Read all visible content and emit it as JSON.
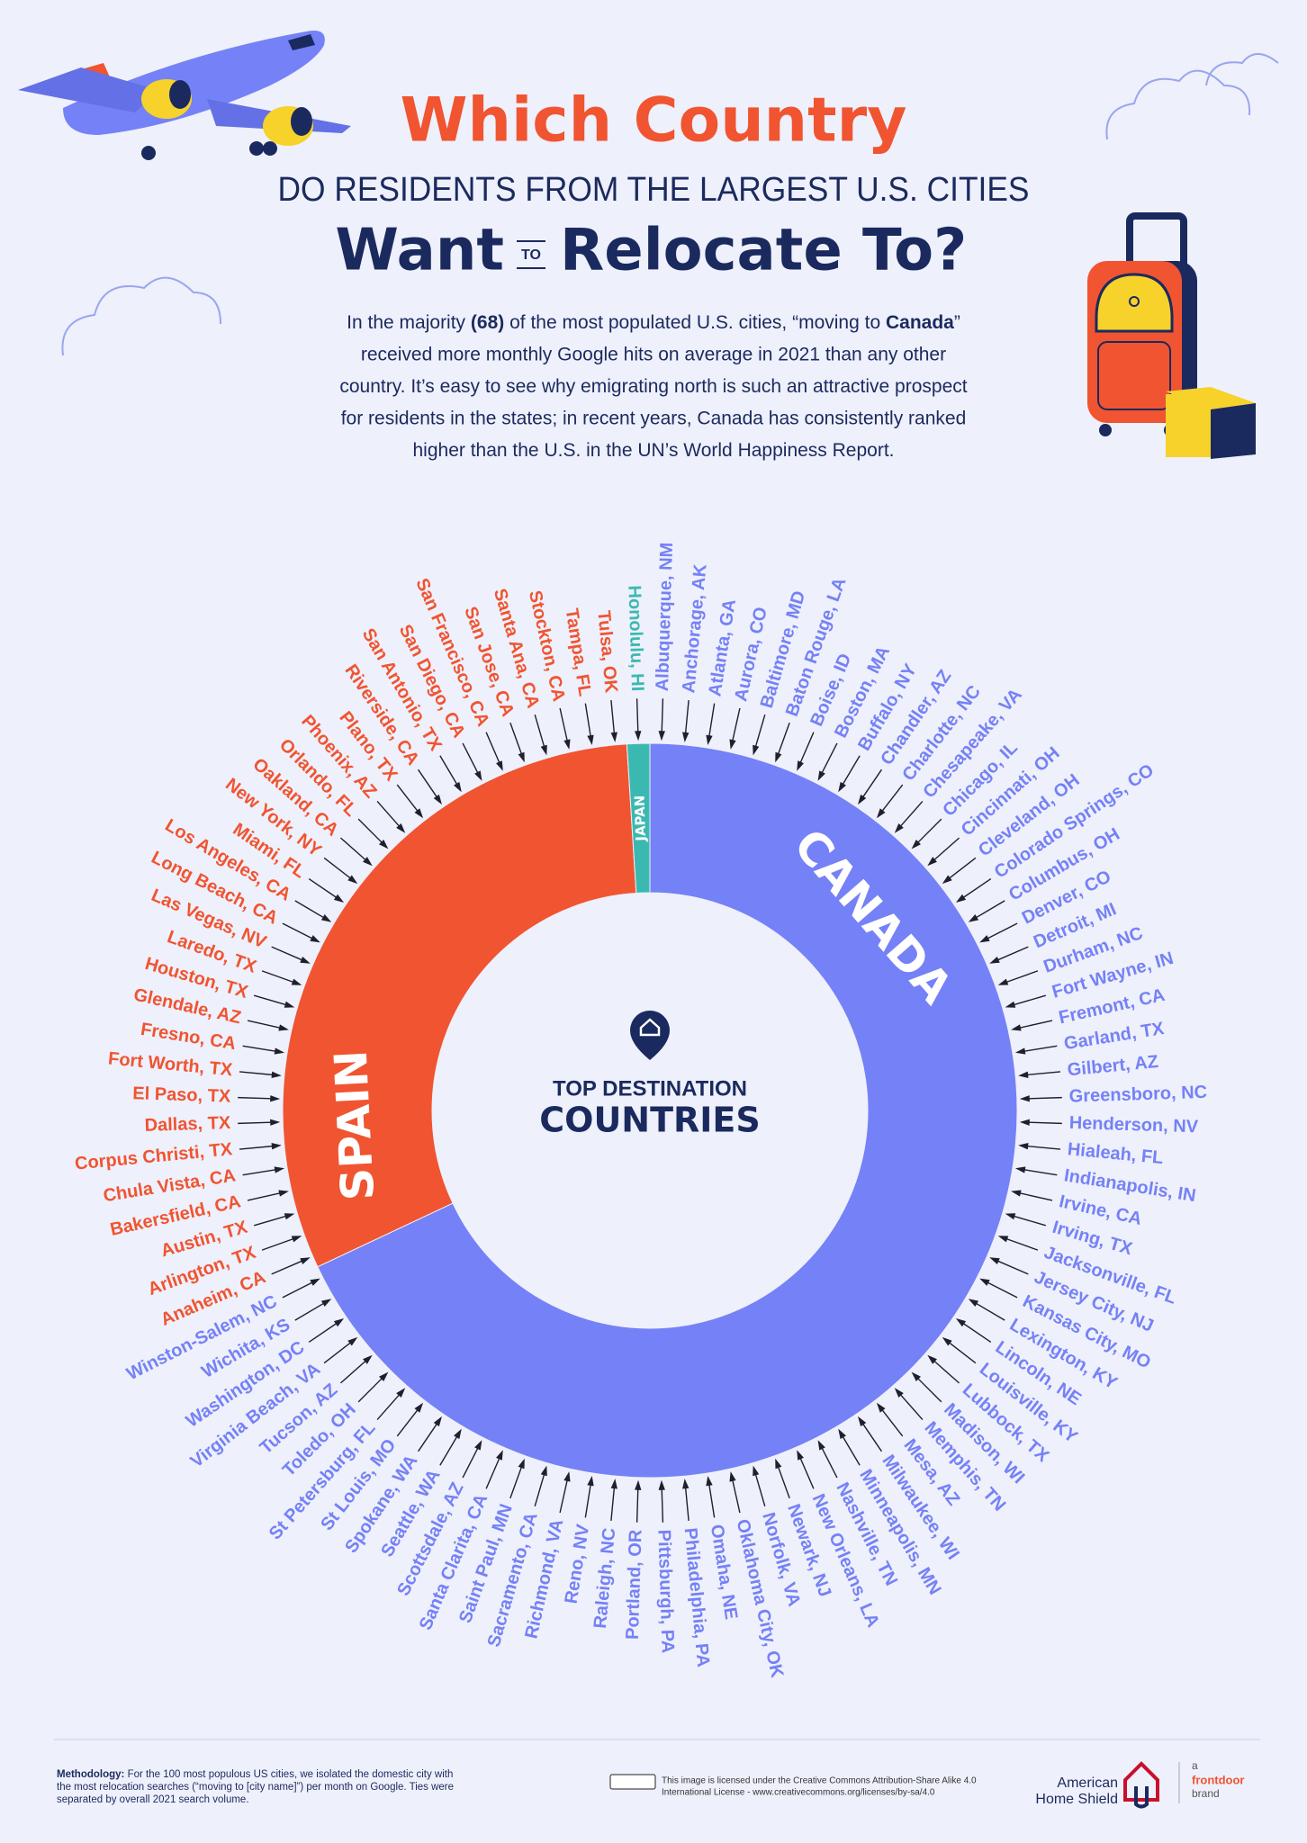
{
  "header": {
    "line1": "Which Country",
    "line2": "DO RESIDENTS FROM THE LARGEST U.S. CITIES",
    "line3_left": "Want",
    "line3_small": "TO",
    "line3_right": "Relocate To?"
  },
  "intro": {
    "lines": [
      [
        {
          "text": "In the majority "
        },
        {
          "text": "(68)",
          "bold": true
        },
        {
          "text": " of the most populated U.S. cities, “moving to "
        },
        {
          "text": "Canada",
          "bold": true
        },
        {
          "text": "”"
        }
      ],
      [
        {
          "text": "received more monthly Google hits on average in 2021 than any other"
        }
      ],
      [
        {
          "text": "country. It’s easy to see why emigrating north is such an attractive prospect"
        }
      ],
      [
        {
          "text": "for residents in the states; in recent years, Canada has consistently ranked"
        }
      ],
      [
        {
          "text": "higher than the U.S. in the UN’s World Happiness Report."
        }
      ]
    ]
  },
  "chart_data": {
    "type": "donut",
    "center_title": "TOP DESTINATION",
    "center_subtitle": "COUNTRIES",
    "segments": [
      {
        "name": "CANADA",
        "color": "#7581f6",
        "value": 68,
        "cities": [
          "Albuquerque, NM",
          "Anchorage, AK",
          "Atlanta, GA",
          "Aurora, CO",
          "Baltimore, MD",
          "Baton Rouge, LA",
          "Boise, ID",
          "Boston, MA",
          "Buffalo, NY",
          "Chandler, AZ",
          "Charlotte, NC",
          "Chesapeake, VA",
          "Chicago, IL",
          "Cincinnati, OH",
          "Cleveland, OH",
          "Colorado Springs, CO",
          "Columbus, OH",
          "Denver, CO",
          "Detroit, MI",
          "Durham, NC",
          "Fort Wayne, IN",
          "Fremont, CA",
          "Garland, TX",
          "Gilbert, AZ",
          "Greensboro, NC",
          "Henderson, NV",
          "Hialeah, FL",
          "Indianapolis, IN",
          "Irvine, CA",
          "Irving, TX",
          "Jacksonville, FL",
          "Jersey City, NJ",
          "Kansas City, MO",
          "Lexington, KY",
          "Lincoln, NE",
          "Louisville, KY",
          "Lubbock, TX",
          "Madison, WI",
          "Memphis, TN",
          "Mesa, AZ",
          "Milwaukee, WI",
          "Minneapolis, MN",
          "Nashville, TN",
          "New Orleans, LA",
          "Newark, NJ",
          "Norfolk, VA",
          "Oklahoma City, OK",
          "Omaha, NE",
          "Philadelphia, PA",
          "Pittsburgh, PA",
          "Portland, OR",
          "Raleigh, NC",
          "Reno, NV",
          "Richmond, VA",
          "Sacramento, CA",
          "Saint Paul, MN",
          "Santa Clarita, CA",
          "Scottsdale, AZ",
          "Seattle, WA",
          "Spokane, WA",
          "St Louis, MO",
          "St Petersburg, FL",
          "Toledo, OH",
          "Tucson, AZ",
          "Virginia Beach, VA",
          "Washington, DC",
          "Wichita, KS",
          "Winston-Salem, NC"
        ]
      },
      {
        "name": "SPAIN",
        "color": "#f05431",
        "value": 31,
        "cities": [
          "Anaheim, CA",
          "Arlington, TX",
          "Austin, TX",
          "Bakersfield, CA",
          "Chula Vista, CA",
          "Corpus Christi, TX",
          "Dallas, TX",
          "El Paso, TX",
          "Fort Worth, TX",
          "Fresno, CA",
          "Glendale, AZ",
          "Houston, TX",
          "Laredo, TX",
          "Las Vegas, NV",
          "Long Beach, CA",
          "Los Angeles, CA",
          "Miami, FL",
          "New York, NY",
          "Oakland, CA",
          "Orlando, FL",
          "Phoenix, AZ",
          "Plano, TX",
          "Riverside, CA",
          "San Antonio, TX",
          "San Diego, CA",
          "San Francisco, CA",
          "San Jose, CA",
          "Santa Ana, CA",
          "Stockton, CA",
          "Tampa, FL",
          "Tulsa, OK"
        ]
      },
      {
        "name": "JAPAN",
        "color": "#3bb9b1",
        "value": 1,
        "cities": [
          "Honolulu, HI"
        ]
      }
    ]
  },
  "footer": {
    "methodology": [
      [
        {
          "text": "Methodology:",
          "bold": true
        },
        {
          "text": " For the 100 most populous US cities, we isolated the domestic city with"
        }
      ],
      [
        {
          "text": "the most relocation searches (“moving to [city name]”) per month on Google. Ties were"
        }
      ],
      [
        {
          "text": "separated by overall 2021 search volume."
        }
      ]
    ],
    "license": [
      "This image is licensed under the Creative Commons Attribution-Share Alike 4.0",
      "International License - www.creativecommons.org/licenses/by-sa/4.0"
    ],
    "brand": [
      "American",
      "Home Shield"
    ],
    "partner": [
      "a",
      "frontdoor",
      "brand"
    ]
  }
}
